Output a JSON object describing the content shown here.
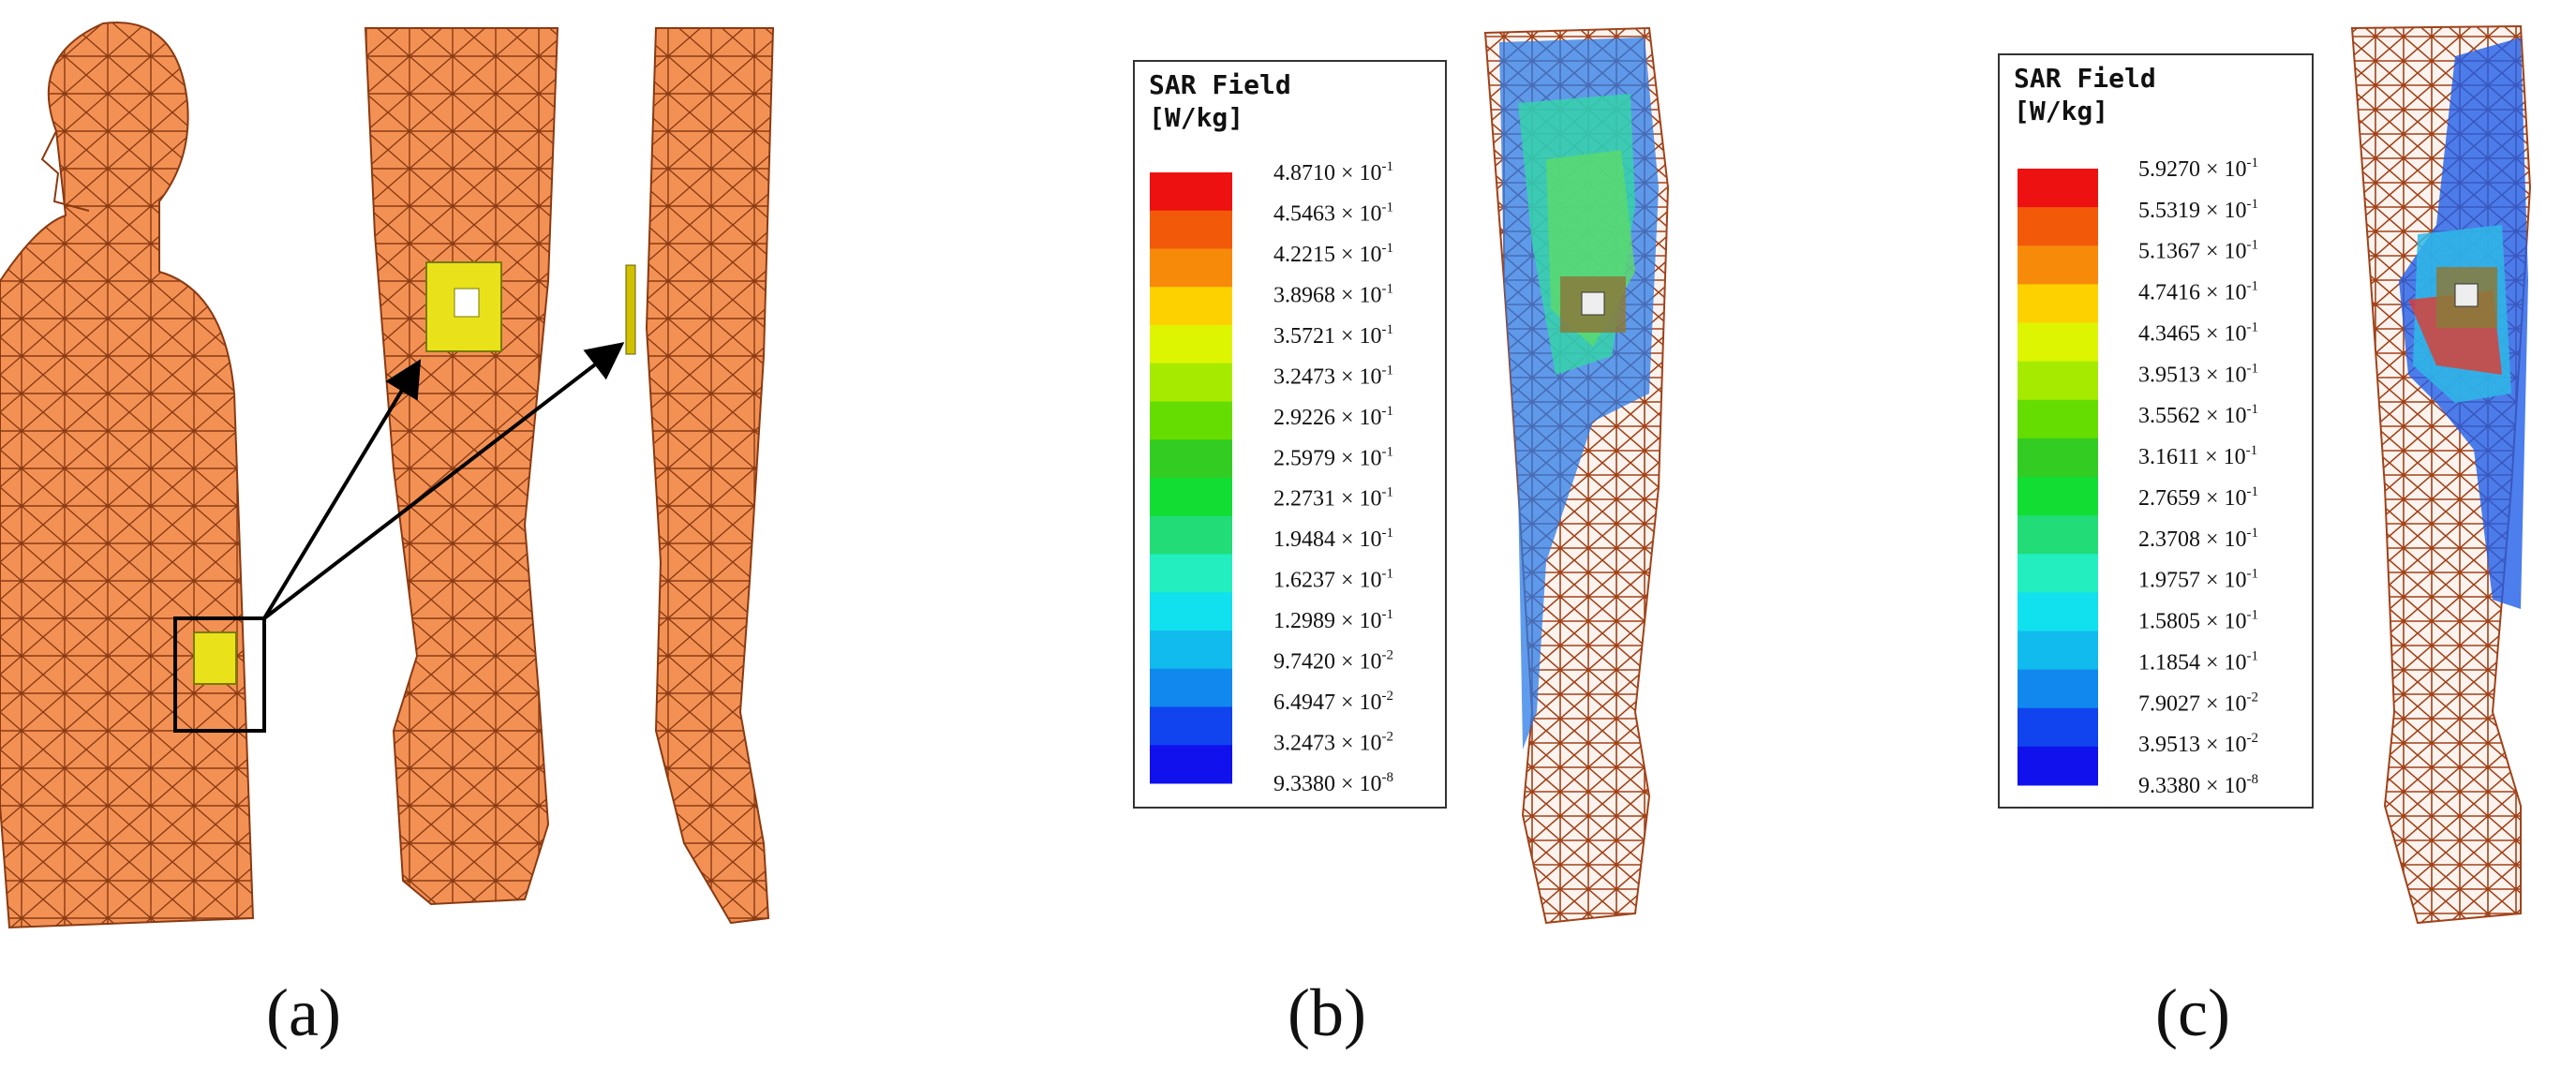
{
  "panels": [
    {
      "label": "(a)"
    },
    {
      "label": "(b)",
      "legend": {
        "title": "SAR Field",
        "unit": "[W/kg]",
        "colors": [
          "#ee1111",
          "#f25a0a",
          "#f88a0a",
          "#fdd100",
          "#ddf500",
          "#a6ea00",
          "#66dd00",
          "#33cc22",
          "#11dd33",
          "#22dd77",
          "#22eec0",
          "#11e0ee",
          "#11bbee",
          "#1188ee",
          "#1144ee",
          "#1111ee"
        ],
        "entries": [
          {
            "coefficient": "4.8710 × 10",
            "exponent": "-1"
          },
          {
            "coefficient": "4.5463 × 10",
            "exponent": "-1"
          },
          {
            "coefficient": "4.2215 × 10",
            "exponent": "-1"
          },
          {
            "coefficient": "3.8968 × 10",
            "exponent": "-1"
          },
          {
            "coefficient": "3.5721 × 10",
            "exponent": "-1"
          },
          {
            "coefficient": "3.2473 × 10",
            "exponent": "-1"
          },
          {
            "coefficient": "2.9226 × 10",
            "exponent": "-1"
          },
          {
            "coefficient": "2.5979 × 10",
            "exponent": "-1"
          },
          {
            "coefficient": "2.2731 × 10",
            "exponent": "-1"
          },
          {
            "coefficient": "1.9484 × 10",
            "exponent": "-1"
          },
          {
            "coefficient": "1.6237 × 10",
            "exponent": "-1"
          },
          {
            "coefficient": "1.2989 × 10",
            "exponent": "-1"
          },
          {
            "coefficient": "9.7420 × 10",
            "exponent": "-2"
          },
          {
            "coefficient": "6.4947 × 10",
            "exponent": "-2"
          },
          {
            "coefficient": "3.2473 × 10",
            "exponent": "-2"
          },
          {
            "coefficient": "9.3380 × 10",
            "exponent": "-8"
          }
        ]
      }
    },
    {
      "label": "(c)",
      "legend": {
        "title": "SAR Field",
        "unit": "[W/kg]",
        "colors": [
          "#ee1111",
          "#f25a0a",
          "#f88a0a",
          "#fdd100",
          "#ddf500",
          "#a6ea00",
          "#66dd00",
          "#33cc22",
          "#11dd33",
          "#22dd77",
          "#22eec0",
          "#11e0ee",
          "#11bbee",
          "#1188ee",
          "#1144ee",
          "#1111ee"
        ],
        "entries": [
          {
            "coefficient": "5.9270 × 10",
            "exponent": "-1"
          },
          {
            "coefficient": "5.5319 × 10",
            "exponent": "-1"
          },
          {
            "coefficient": "5.1367 × 10",
            "exponent": "-1"
          },
          {
            "coefficient": "4.7416 × 10",
            "exponent": "-1"
          },
          {
            "coefficient": "4.3465 × 10",
            "exponent": "-1"
          },
          {
            "coefficient": "3.9513 × 10",
            "exponent": "-1"
          },
          {
            "coefficient": "3.5562 × 10",
            "exponent": "-1"
          },
          {
            "coefficient": "3.1611 × 10",
            "exponent": "-1"
          },
          {
            "coefficient": "2.7659 × 10",
            "exponent": "-1"
          },
          {
            "coefficient": "2.3708 × 10",
            "exponent": "-1"
          },
          {
            "coefficient": "1.9757 × 10",
            "exponent": "-1"
          },
          {
            "coefficient": "1.5805 × 10",
            "exponent": "-1"
          },
          {
            "coefficient": "1.1854 × 10",
            "exponent": "-1"
          },
          {
            "coefficient": "7.9027 × 10",
            "exponent": "-2"
          },
          {
            "coefficient": "3.9513 × 10",
            "exponent": "-2"
          },
          {
            "coefficient": "9.3380 × 10",
            "exponent": "-8"
          }
        ]
      }
    }
  ]
}
